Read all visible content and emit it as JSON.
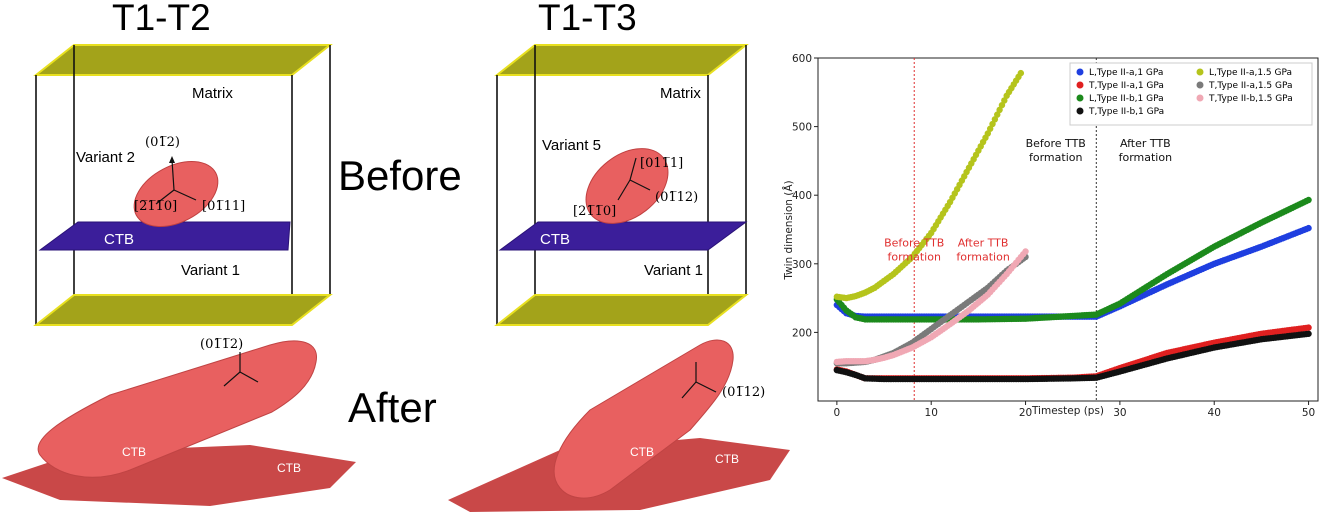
{
  "headings": {
    "left": "T1-T2",
    "right": "T1-T3",
    "before": "Before",
    "after": "After"
  },
  "box_left": {
    "matrix": "Matrix",
    "variant_top": "Variant 2",
    "variant_bottom": "Variant 1",
    "ctb": "CTB",
    "dir_top": "(01̅2)",
    "dir_left": "[2̅1̅1̅0]",
    "dir_right": "[01̅11]",
    "dir_after": "(01̅1̅2)"
  },
  "box_right": {
    "matrix": "Matrix",
    "variant_top": "Variant 5",
    "variant_bottom": "Variant 1",
    "ctb": "CTB",
    "dir_top": "[011̅1]",
    "dir_left": "[21̅1̅0]",
    "dir_right": "(01̅12)",
    "dir_after": "(01̅12)"
  },
  "after_left": {
    "ctb_a": "CTB",
    "ctb_b": "CTB"
  },
  "after_right": {
    "ctb_a": "CTB",
    "ctb_b": "CTB"
  },
  "colors": {
    "plate_yellow": "#a3a31a",
    "ctb_plane": "#3b1e9a",
    "twin_red": "#e86060"
  },
  "chart_data": {
    "type": "scatter",
    "xlabel": "Timestep (ps)",
    "ylabel": "Twin dimension (Å)",
    "xlim": [
      -2,
      51
    ],
    "ylim": [
      100,
      600
    ],
    "xticks": [
      0,
      10,
      20,
      30,
      40,
      50
    ],
    "yticks": [
      200,
      300,
      400,
      500,
      600
    ],
    "legend": "top-right",
    "vlines": [
      {
        "x": 8.2,
        "color": "#e03030",
        "style": "dotted"
      },
      {
        "x": 27.5,
        "color": "#333333",
        "style": "dotted"
      }
    ],
    "annotations": [
      {
        "text": "Before TTB",
        "line2": "formation",
        "x": 8.2,
        "y": 325,
        "color": "#e03030"
      },
      {
        "text": "After TTB",
        "line2": "formation",
        "x": 15.5,
        "y": 325,
        "color": "#e03030"
      },
      {
        "text": "Before TTB",
        "line2": "formation",
        "x": 23.2,
        "y": 470,
        "color": "#111111"
      },
      {
        "text": "After TTB",
        "line2": "formation",
        "x": 32.7,
        "y": 470,
        "color": "#111111"
      }
    ],
    "series": [
      {
        "name": "L,Type II-a,1 GPa",
        "color": "#1f3fe0",
        "x": [
          0,
          1,
          2,
          3,
          5,
          10,
          15,
          20,
          25,
          27.5,
          30,
          35,
          40,
          45,
          50
        ],
        "y": [
          240,
          228,
          224,
          223,
          223,
          223,
          223,
          223,
          223,
          223,
          238,
          270,
          300,
          325,
          352
        ]
      },
      {
        "name": "T,Type II-a,1 GPa",
        "color": "#e02020",
        "x": [
          0,
          1,
          2,
          3,
          5,
          10,
          15,
          20,
          25,
          27.5,
          30,
          35,
          40,
          45,
          50
        ],
        "y": [
          146,
          143,
          138,
          133,
          133,
          133,
          133,
          133,
          134,
          136,
          148,
          170,
          185,
          198,
          207
        ]
      },
      {
        "name": "L,Type II-b,1 GPa",
        "color": "#1c8a1c",
        "x": [
          0,
          1,
          2,
          3,
          5,
          10,
          15,
          20,
          25,
          27.5,
          30,
          35,
          40,
          45,
          50
        ],
        "y": [
          248,
          232,
          222,
          219,
          219,
          219,
          219,
          220,
          224,
          226,
          242,
          285,
          325,
          360,
          393
        ]
      },
      {
        "name": "T,Type II-b,1 GPa",
        "color": "#111111",
        "x": [
          0,
          1,
          2,
          3,
          5,
          10,
          15,
          20,
          25,
          27.5,
          30,
          35,
          40,
          45,
          50
        ],
        "y": [
          145,
          142,
          138,
          133,
          132,
          132,
          132,
          132,
          133,
          134,
          143,
          162,
          178,
          190,
          198
        ]
      },
      {
        "name": "L,Type II-a,1.5 GPa",
        "color": "#b5c41c",
        "x": [
          0,
          1,
          2,
          3,
          4,
          5,
          6,
          8,
          10,
          12,
          14,
          16,
          18,
          19.5
        ],
        "y": [
          252,
          250,
          253,
          258,
          265,
          275,
          285,
          310,
          345,
          390,
          440,
          490,
          545,
          578
        ]
      },
      {
        "name": "T,Type II-a,1.5 GPa",
        "color": "#7a7a7a",
        "x": [
          0,
          1,
          2,
          3,
          4,
          5,
          6,
          8,
          10,
          12,
          14,
          16,
          18,
          20
        ],
        "y": [
          155,
          155,
          156,
          157,
          160,
          165,
          170,
          185,
          205,
          225,
          245,
          265,
          290,
          310
        ]
      },
      {
        "name": "T,Type II-b,1.5 GPa",
        "color": "#f0a8b4",
        "x": [
          0,
          1,
          2,
          3,
          4,
          5,
          6,
          8,
          10,
          12,
          14,
          16,
          18,
          20
        ],
        "y": [
          157,
          158,
          158,
          158,
          160,
          163,
          167,
          178,
          193,
          212,
          232,
          255,
          285,
          318
        ]
      }
    ]
  }
}
